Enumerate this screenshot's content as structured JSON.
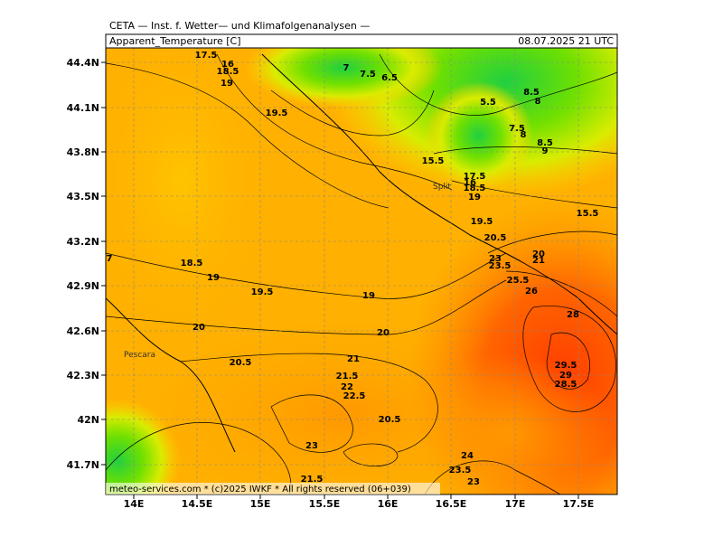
{
  "header": {
    "institute": "CETA — Inst. f. Wetter— und Klimafolgenanalysen —",
    "variable": "Apparent_Temperature [C]",
    "valid_time": "08.07.2025 21 UTC"
  },
  "axes": {
    "lon_labels": [
      "14E",
      "14.5E",
      "15E",
      "15.5E",
      "16E",
      "16.5E",
      "17E",
      "17.5E"
    ],
    "lat_labels": [
      "44.4N",
      "44.1N",
      "43.8N",
      "43.5N",
      "43.2N",
      "42.9N",
      "42.6N",
      "42.3N",
      "42N",
      "41.7N"
    ]
  },
  "places": [
    "Split",
    "Pescara"
  ],
  "contour_labels": [
    "17.5",
    "16",
    "18.5",
    "19",
    "19.5",
    "7",
    "7.5",
    "6.5",
    "5.5",
    "8.5",
    "8",
    "7.5",
    "8",
    "8.5",
    "9",
    "15.5",
    "17.5",
    "16",
    "18.5",
    "19",
    "19.5",
    "15.5",
    "20.5",
    "20",
    "21",
    "23",
    "23.5",
    "25.5",
    "26",
    "28",
    "29.5",
    "29",
    "28.5",
    "7",
    "18.5",
    "19",
    "19.5",
    "19",
    "20",
    "20",
    "20.5",
    "21",
    "21.5",
    "22",
    "22.5",
    "20.5",
    "23",
    "24",
    "23.5",
    "23",
    "21.5"
  ],
  "footer": "meteo-services.com * (c)2025 IWKF * All rights reserved (06+039)"
}
